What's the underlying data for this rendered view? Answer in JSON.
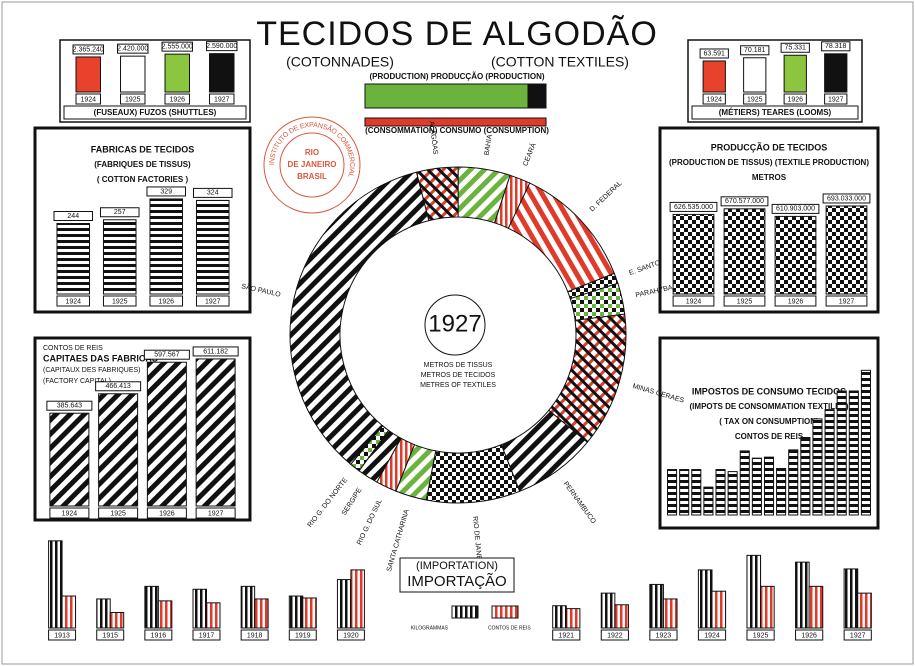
{
  "title": "TECIDOS DE ALGODÃO",
  "subtitle_fr": "(COTONNADES)",
  "subtitle_en": "(COTTON TEXTILES)",
  "stamp": {
    "ring": "INSTITUTO DE EXPANSÃO COMMERCIAL",
    "lines": [
      "RIO",
      "DE JANEIRO",
      "BRASIL"
    ]
  },
  "chart_data": [
    {
      "type": "bar",
      "title_lines": [
        "(FUSEAUX) FUZOS (SHUTTLES)"
      ],
      "categories": [
        "1924",
        "1925",
        "1926",
        "1927"
      ],
      "values": [
        2365240,
        2420000,
        2555000,
        2590000
      ],
      "value_labels": [
        "2.365.240",
        "2.420.000",
        "2.555.000",
        "2.590.000"
      ],
      "colors": [
        "#e8412c",
        "#ffffff",
        "#8cc63f",
        "#111111"
      ],
      "ylim": [
        0,
        2700000
      ]
    },
    {
      "type": "bar",
      "title_lines": [
        "(MÉTIERS) TEARES (LOOMS)"
      ],
      "categories": [
        "1924",
        "1925",
        "1926",
        "1927"
      ],
      "values": [
        63591,
        70181,
        75331,
        78318
      ],
      "value_labels": [
        "63.591",
        "70.181",
        "75.331",
        "78.318"
      ],
      "colors": [
        "#e8412c",
        "#ffffff",
        "#8cc63f",
        "#111111"
      ],
      "ylim": [
        0,
        82000
      ]
    },
    {
      "type": "hbar",
      "categories": [
        "(PRODUCTION) PRODUCÇÃO (PRODUCTION)",
        "(CONSOMMATION) CONSUMO (CONSUMPTION)"
      ],
      "series": [
        {
          "color": "#6cb33e",
          "values": [
            163,
            null
          ]
        },
        {
          "color": "#111111",
          "values": [
            18,
            null
          ]
        },
        {
          "color": "#e03a2a",
          "values": [
            null,
            181
          ]
        }
      ],
      "xlim": [
        0,
        190
      ]
    },
    {
      "type": "bar",
      "title_lines": [
        "FABRICAS DE TECIDOS",
        "(FABRIQUES DE TISSUS)",
        "( COTTON FACTORIES )"
      ],
      "categories": [
        "1924",
        "1925",
        "1926",
        "1927"
      ],
      "values": [
        244,
        257,
        329,
        324
      ],
      "pattern": "hs",
      "ylim": [
        0,
        360
      ]
    },
    {
      "type": "bar",
      "title_lines": [
        "CONTOS DE REIS",
        "CAPITAES DAS FABRICAS",
        "(CAPITAUX DES FABRIQUES)",
        "(FACTORY CAPITAL)"
      ],
      "categories": [
        "1924",
        "1925",
        "1926",
        "1927"
      ],
      "values": [
        385643,
        466413,
        597567,
        611182
      ],
      "value_labels": [
        "385.643",
        "466.413",
        "597.567",
        "611.182"
      ],
      "pattern": "dg",
      "ylim": [
        0,
        640000
      ]
    },
    {
      "type": "bar",
      "title_lines": [
        "PRODUCÇÃO DE TECIDOS",
        "(PRODUCTION DE TISSUS) (TEXTILE PRODUCTION)",
        "METROS"
      ],
      "categories": [
        "1924",
        "1925",
        "1926",
        "1927"
      ],
      "values": [
        626535000,
        670577000,
        610903000,
        693033000
      ],
      "value_labels": [
        "626.535.000",
        "670.577.000",
        "610.903.000",
        "693.033.000"
      ],
      "pattern": "ck",
      "ylim": [
        0,
        740000000
      ]
    },
    {
      "type": "bar",
      "title_lines": [
        "IMPOSTOS DE CONSUMO TECIDOS",
        "(IMPOTS DE CONSOMMATION TEXTILES)",
        "( TAX ON CONSUMPTION)",
        "CONTOS DE REIS"
      ],
      "categories": [
        null,
        null,
        null,
        null,
        null,
        null,
        null,
        null,
        null,
        null,
        null,
        null,
        null,
        null,
        null,
        null,
        null
      ],
      "values": [
        44,
        44,
        44,
        27,
        44,
        42,
        62,
        55,
        56,
        45,
        63,
        75,
        93,
        102,
        120,
        120,
        140
      ],
      "pattern": "hs",
      "ylim": [
        0,
        150
      ]
    },
    {
      "type": "pie",
      "categories": [
        "ALAGÔAS",
        "BAHIA",
        "CEARÁ",
        "D. FEDERAL",
        "E. SANTO",
        "PARAHYBA",
        "MINAS GERAES",
        "PERNAMBUCO",
        "RIO DE JANEIRO",
        "SANTA CATHARINA",
        "RIO G. DO SUL",
        "SERGIPE",
        "RIO G. DO NORTE",
        "SÃO PAULO"
      ],
      "values": [
        4,
        5,
        2,
        12,
        1,
        3,
        13,
        8,
        9,
        3,
        2,
        2,
        1,
        35
      ],
      "patterns": [
        "cr",
        "gd",
        "rs",
        "rd",
        "ck",
        "gk",
        "cr",
        "dg",
        "ck",
        "gd",
        "rs",
        "dg",
        "gk",
        "dg"
      ],
      "center": "1927",
      "center_lines": [
        "METROS DE TISSUS",
        "METROS DE TECIDOS",
        "METRES OF TEXTILES"
      ]
    },
    {
      "type": "grouped_bar",
      "title_lines": [
        "(IMPORTATION)",
        "IMPORTAÇÃO"
      ],
      "categories": [
        "1913",
        "1915",
        "1916",
        "1917",
        "1918",
        "1919",
        "1920",
        "1921",
        "1922",
        "1923",
        "1924",
        "1925",
        "1926",
        "1927"
      ],
      "series": [
        {
          "name": "KILOGRAMMAS",
          "pattern": "vs",
          "values": [
            90,
            30,
            43,
            40,
            43,
            33,
            50,
            23,
            36,
            45,
            60,
            75,
            68,
            61
          ]
        },
        {
          "name": "CONTOS DE REIS",
          "pattern": "rs",
          "values": [
            33,
            16,
            28,
            26,
            30,
            31,
            60,
            20,
            24,
            30,
            38,
            43,
            43,
            36
          ]
        }
      ],
      "ylim": [
        0,
        95
      ]
    }
  ]
}
